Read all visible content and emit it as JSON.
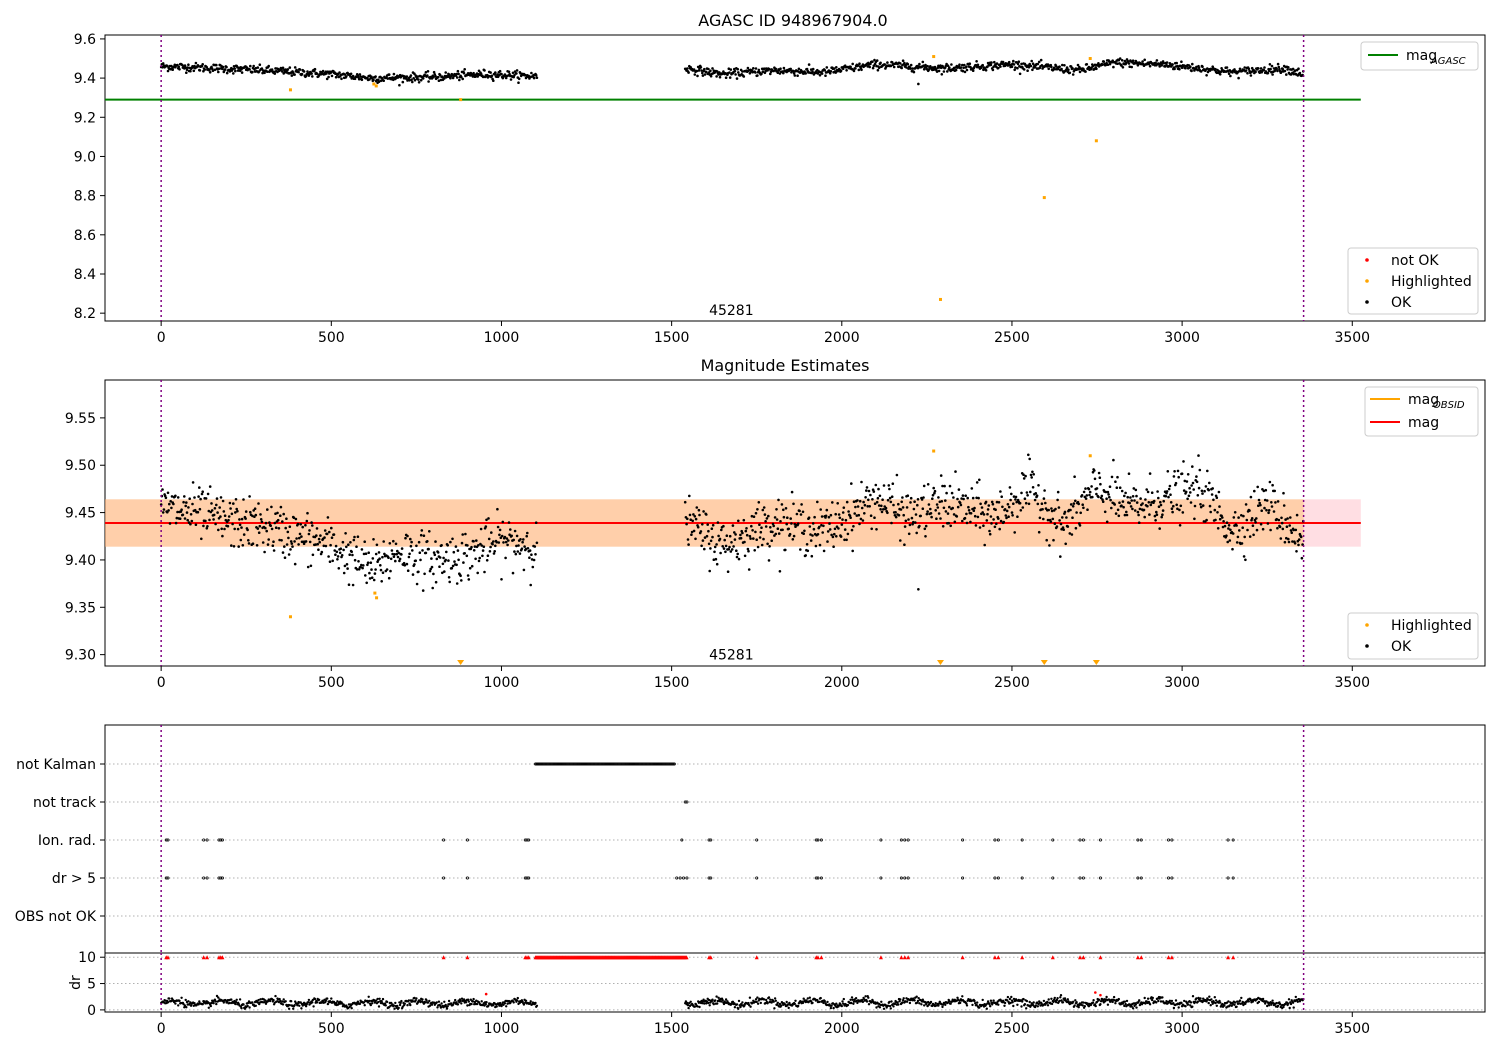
{
  "chart_data": [
    {
      "type": "scatter",
      "title": "AGASC ID 948967904.0",
      "xlim": [
        -165,
        3890
      ],
      "ylim": [
        8.16,
        9.62
      ],
      "xticks": [
        0,
        500,
        1000,
        1500,
        2000,
        2500,
        3000,
        3500
      ],
      "xtick_labels": [
        "0",
        "500",
        "1000",
        "1500",
        "2000",
        "2500",
        "3000",
        "3500"
      ],
      "yticks": [
        8.2,
        8.4,
        8.6,
        8.8,
        9.0,
        9.2,
        9.4,
        9.6
      ],
      "ytick_labels": [
        "8.2",
        "8.4",
        "8.6",
        "8.8",
        "9.0",
        "9.2",
        "9.4",
        "9.6"
      ],
      "vlines": [
        0,
        3357
      ],
      "hline": {
        "name": "mag",
        "subscript": "AGASC",
        "value": 9.29,
        "x": [
          -165,
          3525
        ],
        "color": "#008000"
      },
      "ok_segments": [
        {
          "x0": 0,
          "x1": 1105,
          "knots": [
            [
              0,
              9.46
            ],
            [
              100,
              9.455
            ],
            [
              300,
              9.44
            ],
            [
              500,
              9.42
            ],
            [
              620,
              9.4
            ],
            [
              800,
              9.405
            ],
            [
              950,
              9.42
            ],
            [
              1105,
              9.41
            ]
          ]
        },
        {
          "x0": 1540,
          "x1": 3357,
          "knots": [
            [
              1540,
              9.45
            ],
            [
              1650,
              9.42
            ],
            [
              1800,
              9.44
            ],
            [
              1950,
              9.43
            ],
            [
              2100,
              9.47
            ],
            [
              2300,
              9.45
            ],
            [
              2500,
              9.47
            ],
            [
              2700,
              9.44
            ],
            [
              2800,
              9.48
            ],
            [
              2950,
              9.47
            ],
            [
              3150,
              9.43
            ],
            [
              3300,
              9.45
            ],
            [
              3357,
              9.42
            ]
          ]
        }
      ],
      "ok_outliers": [
        [
          2225,
          9.37
        ]
      ],
      "highlighted": [
        [
          380,
          9.34
        ],
        [
          625,
          9.37
        ],
        [
          632,
          9.36
        ],
        [
          880,
          9.29
        ],
        [
          2270,
          9.51
        ],
        [
          2290,
          8.27
        ],
        [
          2595,
          8.79
        ],
        [
          2730,
          9.5
        ],
        [
          2748,
          9.08
        ]
      ],
      "annotation": {
        "text": "45281",
        "x": 1610,
        "y": 8.19
      },
      "legend_upper": [
        {
          "label": "mag",
          "subscript": "AGASC",
          "color": "#008000"
        }
      ],
      "legend_lower": [
        {
          "label": "not OK",
          "color": "#ff0000"
        },
        {
          "label": "Highlighted",
          "color": "#ffa500"
        },
        {
          "label": "OK",
          "color": "#000000"
        }
      ]
    },
    {
      "type": "scatter",
      "title": "Magnitude Estimates",
      "xlim": [
        -165,
        3890
      ],
      "ylim": [
        9.288,
        9.59
      ],
      "xticks": [
        0,
        500,
        1000,
        1500,
        2000,
        2500,
        3000,
        3500
      ],
      "xtick_labels": [
        "0",
        "500",
        "1000",
        "1500",
        "2000",
        "2500",
        "3000",
        "3500"
      ],
      "yticks": [
        9.3,
        9.35,
        9.4,
        9.45,
        9.5,
        9.55
      ],
      "ytick_labels": [
        "9.30",
        "9.35",
        "9.40",
        "9.45",
        "9.50",
        "9.55"
      ],
      "vlines": [
        0,
        3357
      ],
      "mag_line": {
        "name": "mag",
        "value": 9.439,
        "color": "#ff0000",
        "band": [
          9.414,
          9.464
        ]
      },
      "obsid_band": {
        "name": "mag",
        "subscript": "OBSID",
        "value": 9.439,
        "band": [
          9.414,
          9.464
        ],
        "x": [
          -165,
          3357
        ],
        "color": "#ffa500"
      },
      "ok_segments": [
        {
          "x0": 0,
          "x1": 1105,
          "knots": [
            [
              0,
              9.455
            ],
            [
              100,
              9.45
            ],
            [
              200,
              9.44
            ],
            [
              300,
              9.435
            ],
            [
              400,
              9.425
            ],
            [
              500,
              9.415
            ],
            [
              620,
              9.39
            ],
            [
              700,
              9.41
            ],
            [
              800,
              9.4
            ],
            [
              900,
              9.405
            ],
            [
              1000,
              9.42
            ],
            [
              1105,
              9.415
            ]
          ]
        },
        {
          "x0": 1540,
          "x1": 3357,
          "knots": [
            [
              1540,
              9.44
            ],
            [
              1650,
              9.415
            ],
            [
              1800,
              9.44
            ],
            [
              1950,
              9.43
            ],
            [
              2100,
              9.465
            ],
            [
              2200,
              9.445
            ],
            [
              2300,
              9.46
            ],
            [
              2450,
              9.445
            ],
            [
              2550,
              9.475
            ],
            [
              2650,
              9.435
            ],
            [
              2750,
              9.475
            ],
            [
              2850,
              9.455
            ],
            [
              2950,
              9.465
            ],
            [
              3050,
              9.475
            ],
            [
              3150,
              9.43
            ],
            [
              3250,
              9.46
            ],
            [
              3357,
              9.42
            ]
          ]
        }
      ],
      "ok_outliers": [
        [
          2225,
          9.369
        ]
      ],
      "highlighted": [
        [
          380,
          9.34
        ],
        [
          628,
          9.365
        ],
        [
          633,
          9.36
        ],
        [
          2270,
          9.515
        ],
        [
          2730,
          9.51
        ]
      ],
      "clipped_highlighted": [
        880,
        2290,
        2595,
        2748
      ],
      "annotation": {
        "text": "45281",
        "x": 1610,
        "y": 9.3
      },
      "legend_upper": [
        {
          "label": "mag",
          "subscript": "OBSID",
          "color": "#ffa500"
        },
        {
          "label": "mag",
          "color": "#ff0000"
        }
      ],
      "legend_lower": [
        {
          "label": "Highlighted",
          "color": "#ffa500"
        },
        {
          "label": "OK",
          "color": "#000000"
        }
      ]
    },
    {
      "type": "scatter",
      "title": "",
      "xlim": [
        -165,
        3890
      ],
      "categories": [
        "not Kalman",
        "not track",
        "Ion. rad.",
        "dr > 5",
        "OBS not OK"
      ],
      "vlines": [
        0,
        3357
      ],
      "flag_events": {
        "not Kalman": {
          "ranges": [
            [
              1100,
              1510
            ]
          ]
        },
        "not track": {
          "points": [
            1540,
            1545
          ]
        },
        "Ion. rad.": {
          "points": [
            15,
            20,
            125,
            135,
            170,
            175,
            180,
            830,
            900,
            1070,
            1075,
            1080,
            1530,
            1610,
            1615,
            1750,
            1925,
            1930,
            1940,
            2115,
            2175,
            2185,
            2195,
            2355,
            2450,
            2460,
            2530,
            2620,
            2700,
            2710,
            2760,
            2870,
            2880,
            2960,
            2970,
            3135,
            3150
          ]
        },
        "dr > 5": {
          "points": [
            15,
            20,
            125,
            135,
            170,
            175,
            180,
            830,
            900,
            1070,
            1075,
            1080,
            1515,
            1525,
            1535,
            1545,
            1610,
            1615,
            1750,
            1925,
            1930,
            1940,
            2115,
            2175,
            2185,
            2195,
            2355,
            2450,
            2460,
            2530,
            2620,
            2700,
            2710,
            2760,
            2870,
            2880,
            2960,
            2970,
            3135,
            3150
          ]
        },
        "OBS not OK": {
          "points": []
        }
      }
    },
    {
      "type": "scatter",
      "ylabel": "dr",
      "xlim": [
        -165,
        3890
      ],
      "ylim": [
        -0.4,
        10.8
      ],
      "xticks": [
        0,
        500,
        1000,
        1500,
        2000,
        2500,
        3000,
        3500
      ],
      "xtick_labels": [
        "0",
        "500",
        "1000",
        "1500",
        "2000",
        "2500",
        "3000",
        "3500"
      ],
      "yticks": [
        0,
        5,
        10
      ],
      "ytick_labels": [
        "0",
        "5",
        "10"
      ],
      "vlines": [
        0,
        3357
      ],
      "dr_segments": [
        {
          "x0": 0,
          "x1": 1105,
          "base": 1.3
        },
        {
          "x0": 1540,
          "x1": 3357,
          "base": 1.4
        }
      ],
      "dr_outliers": [
        [
          955,
          3.0
        ],
        [
          2745,
          3.3
        ],
        [
          2760,
          2.8
        ]
      ],
      "clipped_markers": {
        "ranges": [
          [
            1100,
            1545
          ]
        ],
        "points": [
          15,
          20,
          125,
          135,
          170,
          175,
          180,
          830,
          900,
          1070,
          1075,
          1080,
          1610,
          1615,
          1750,
          1925,
          1930,
          1940,
          2115,
          2175,
          2185,
          2195,
          2355,
          2450,
          2460,
          2530,
          2620,
          2700,
          2710,
          2760,
          2870,
          2880,
          2960,
          2970,
          3135,
          3150
        ]
      }
    }
  ]
}
